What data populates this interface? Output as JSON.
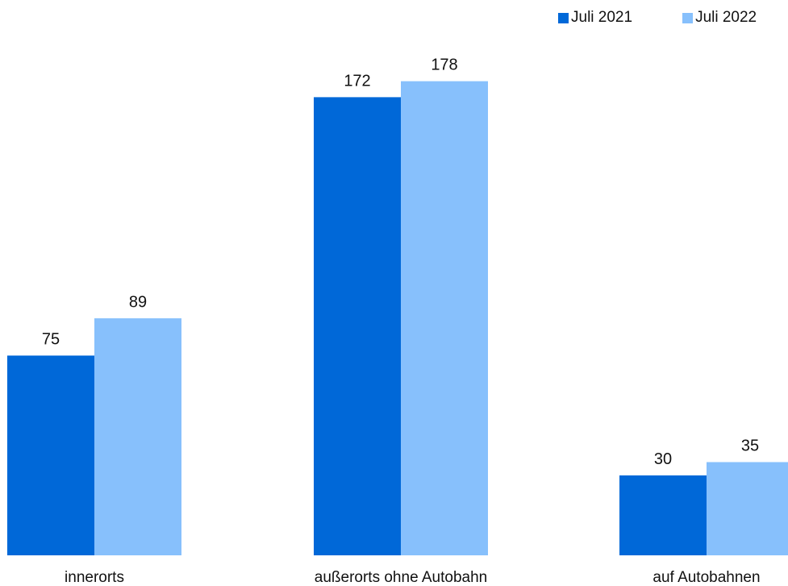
{
  "legend": {
    "items": [
      {
        "label": "Juli 2021",
        "color": "#0068d8"
      },
      {
        "label": "Juli 2022",
        "color": "#87c0fc"
      }
    ]
  },
  "chart_data": {
    "type": "bar",
    "title": "",
    "xlabel": "",
    "ylabel": "",
    "categories": [
      "innerorts",
      "außerorts ohne Autobahn",
      "auf Autobahnen"
    ],
    "series": [
      {
        "name": "Juli 2021",
        "color": "#0068d8",
        "values": [
          75,
          172,
          30
        ]
      },
      {
        "name": "Juli 2022",
        "color": "#87c0fc",
        "values": [
          89,
          178,
          35
        ]
      }
    ],
    "ylim": [
      0,
      190
    ],
    "grid": false,
    "legend_position": "top-right",
    "data_labels": true
  }
}
